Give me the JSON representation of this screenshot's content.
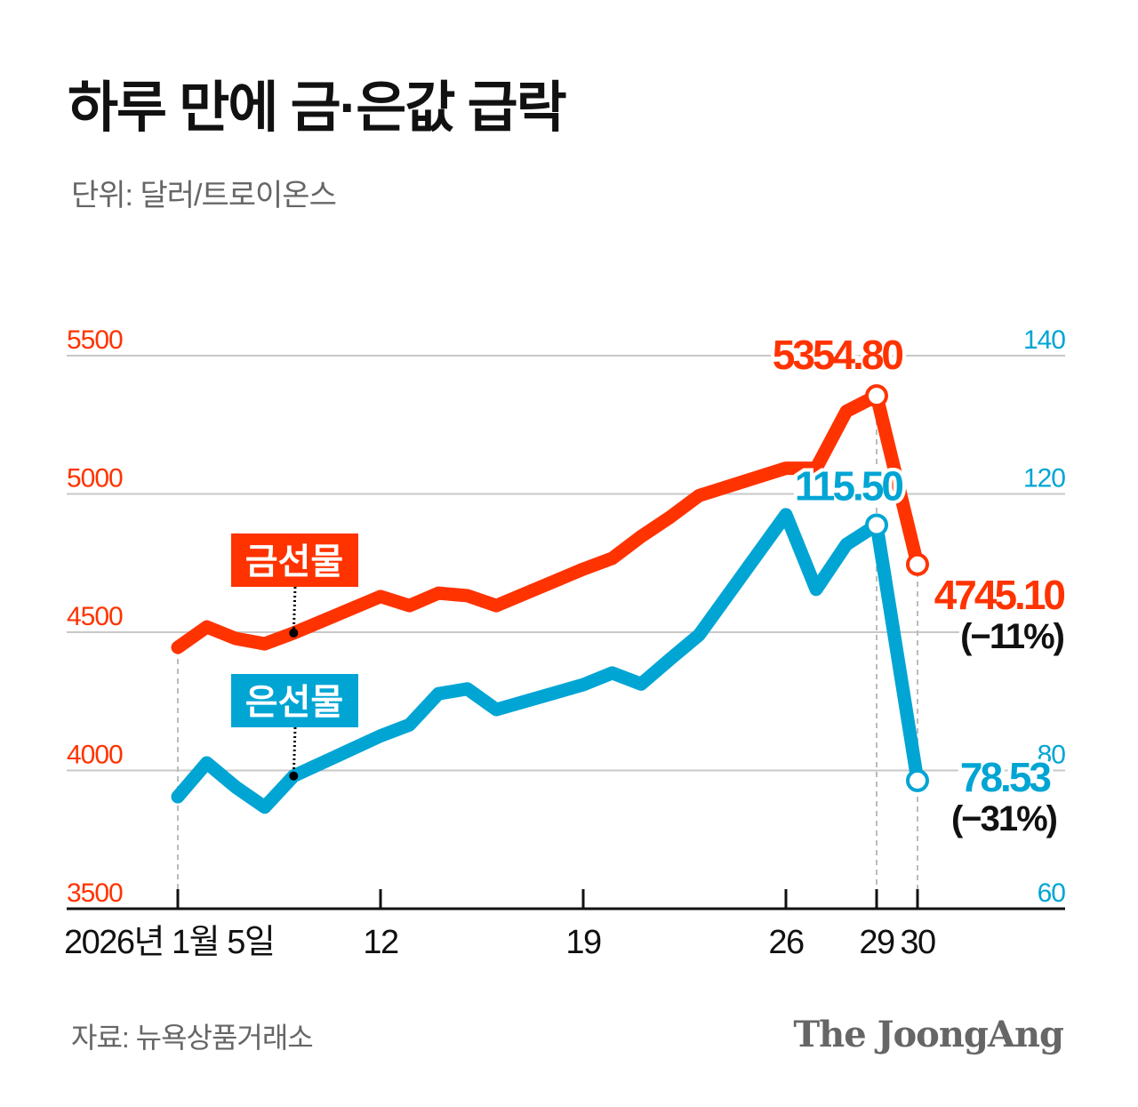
{
  "title": "하루 만에 금·은값 급락",
  "subtitle": "단위: 달러/트로이온스",
  "source": "자료: 뉴욕상품거래소",
  "logo": "The JoongAng",
  "colors": {
    "gold": "#ff3300",
    "silver": "#00a5d4",
    "grid": "#c8c8c8",
    "axis": "#111111"
  },
  "chart_data": {
    "type": "line",
    "title": "하루 만에 금·은값 급락",
    "ylabel": "단위: 달러/트로이온스",
    "grid": true,
    "x_tick_labels": [
      {
        "date": "2026-01-05",
        "label": "2026년 1월 5일"
      },
      {
        "date": "2026-01-12",
        "label": "12"
      },
      {
        "date": "2026-01-19",
        "label": "19"
      },
      {
        "date": "2026-01-26",
        "label": "26"
      },
      {
        "date": "2026-01-29",
        "label": "29"
      },
      {
        "date": "2026-01-30",
        "label": "30"
      }
    ],
    "y_left": {
      "range": [
        3500,
        5500
      ],
      "ticks": [
        "3500",
        "4000",
        "4500",
        "5000",
        "5500"
      ]
    },
    "y_right": {
      "range": [
        60,
        140
      ],
      "ticks": [
        "60",
        "80",
        "120",
        "140"
      ]
    },
    "x": [
      "2026-01-05",
      "2026-01-06",
      "2026-01-07",
      "2026-01-08",
      "2026-01-09",
      "2026-01-12",
      "2026-01-13",
      "2026-01-14",
      "2026-01-15",
      "2026-01-16",
      "2026-01-19",
      "2026-01-20",
      "2026-01-21",
      "2026-01-22",
      "2026-01-23",
      "2026-01-26",
      "2026-01-27",
      "2026-01-28",
      "2026-01-29",
      "2026-01-30"
    ],
    "series": [
      {
        "name": "금선물",
        "axis": "left",
        "color": "#ff3300",
        "values": [
          4445,
          4519,
          4477,
          4458,
          4497,
          4629,
          4596,
          4641,
          4632,
          4596,
          4728,
          4767,
          4846,
          4916,
          4994,
          5093,
          5093,
          5299,
          5354.8,
          4745.1
        ]
      },
      {
        "name": "은선물",
        "axis": "right",
        "color": "#00a5d4",
        "values": [
          76.2,
          81.1,
          77.6,
          74.7,
          79.2,
          85.0,
          86.6,
          91.1,
          91.8,
          88.8,
          92.4,
          94.1,
          92.5,
          96.1,
          99.6,
          117.0,
          106.2,
          112.7,
          115.5,
          78.53
        ]
      }
    ],
    "annotations": [
      {
        "series": "금선물",
        "date": "2026-01-29",
        "text": "5354.80"
      },
      {
        "series": "금선물",
        "date": "2026-01-30",
        "text": "4745.10",
        "note": "(−11%)"
      },
      {
        "series": "은선물",
        "date": "2026-01-29",
        "text": "115.50"
      },
      {
        "series": "은선물",
        "date": "2026-01-30",
        "text": "78.53",
        "note": "(−31%)"
      }
    ]
  }
}
